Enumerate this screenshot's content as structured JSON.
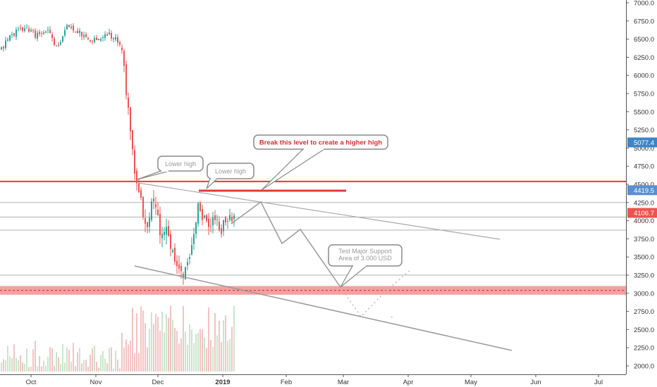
{
  "chart_data": {
    "type": "candlestick",
    "symbol_price_unit": "USD",
    "y_axis": {
      "min": 2000,
      "max": 7000,
      "ticks": [
        7000.0,
        6750.0,
        6500.0,
        6250.0,
        6000.0,
        5750.0,
        5500.0,
        5250.0,
        5000.0,
        4750.0,
        4500.0,
        4250.0,
        4000.0,
        3750.0,
        3500.0,
        3250.0,
        3000.0,
        2750.0,
        2500.0,
        2250.0,
        2000.0
      ]
    },
    "x_axis": {
      "ticks": [
        "Oct",
        "Nov",
        "Dec",
        "2019",
        "Feb",
        "Mar",
        "Apr",
        "May",
        "Jun",
        "Jul"
      ]
    },
    "price_badges": [
      {
        "label": "5077.4",
        "value": 5077.4,
        "color": "#3d85c6"
      },
      {
        "label": "4419.5",
        "value": 4419.5,
        "color": "#5a8fd0"
      },
      {
        "label": "4106.7",
        "value": 4106.7,
        "color": "#ef5350"
      }
    ],
    "horizontal_levels": [
      {
        "value": 4540,
        "color": "#e53935",
        "role": "resistance"
      },
      {
        "value": 4250,
        "color": "#b2b2b2",
        "role": "reference"
      },
      {
        "value": 4050,
        "color": "#b2b2b2",
        "role": "reference"
      },
      {
        "value": 3870,
        "color": "#b2b2b2",
        "role": "reference"
      },
      {
        "value": 3250,
        "color": "#b2b2b2",
        "role": "reference"
      }
    ],
    "support_zone": {
      "from": 2980,
      "to": 3100,
      "color": "#f08080"
    },
    "annotations": [
      {
        "text": "Break this level to create a higher high",
        "color": "#d32f2f"
      },
      {
        "text": "Lower high",
        "color": "#999999"
      },
      {
        "text": "Lower high",
        "color": "#999999"
      },
      {
        "text": "Test Major Support Area of 3.000 USD",
        "color": "#999999"
      }
    ],
    "colors": {
      "up": "#26a69a",
      "down": "#ef5350",
      "trendline": "#999999",
      "resistance": "#e53935"
    },
    "grid": false
  }
}
